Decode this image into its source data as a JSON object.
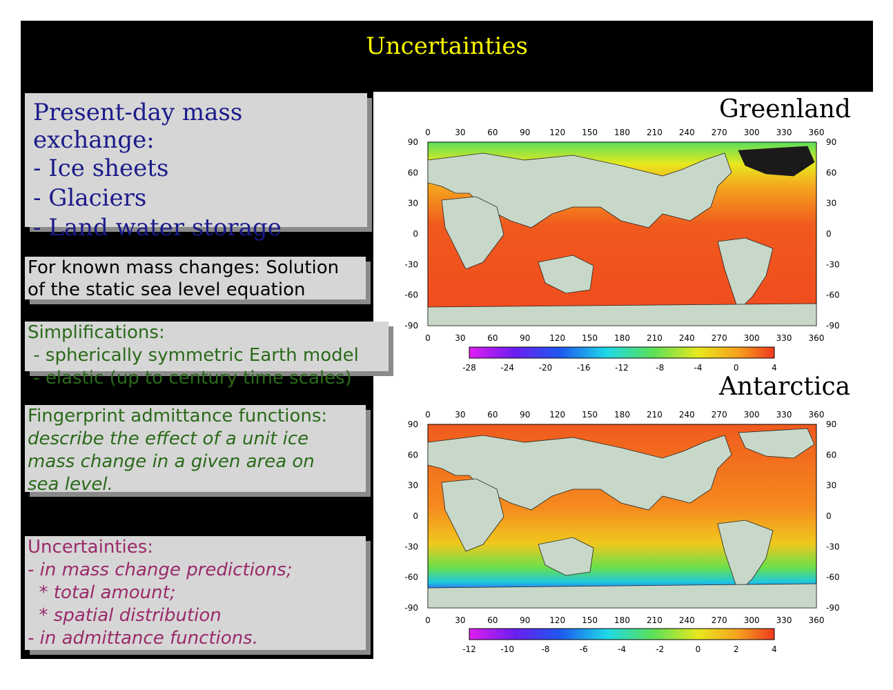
{
  "title": "Uncertainties",
  "box1": {
    "heading": "Present-day mass exchange:",
    "items": [
      "- Ice sheets",
      "- Glaciers",
      "- Land water storage"
    ]
  },
  "box2": {
    "lines": [
      "For known mass changes: Solution",
      "of the static sea level equation"
    ]
  },
  "box3": {
    "lines": [
      "Simplifications:",
      " - spherically symmetric Earth model",
      " - elastic (up to century time scales)"
    ]
  },
  "box4": {
    "heading": "Fingerprint admittance functions:",
    "lines": [
      "describe the effect of a unit ice",
      "mass change in a given area on",
      "sea level."
    ]
  },
  "box5": {
    "heading": "Uncertainties:",
    "lines": [
      "- in mass change predictions;",
      "  * total amount;",
      "  * spatial distribution",
      "- in admittance functions."
    ]
  },
  "map1": {
    "label": "Greenland",
    "lon_ticks": [
      "0",
      "30",
      "60",
      "90",
      "120",
      "150",
      "180",
      "210",
      "240",
      "270",
      "300",
      "330",
      "360"
    ],
    "lat_ticks": [
      "90",
      "60",
      "30",
      "0",
      "-30",
      "-60",
      "-90"
    ],
    "colorbar_ticks": [
      "-28",
      "-24",
      "-20",
      "-16",
      "-12",
      "-8",
      "-4",
      "0",
      "4"
    ]
  },
  "map2": {
    "label": "Antarctica",
    "lon_ticks": [
      "0",
      "30",
      "60",
      "90",
      "120",
      "150",
      "180",
      "210",
      "240",
      "270",
      "300",
      "330",
      "360"
    ],
    "lat_ticks": [
      "90",
      "60",
      "30",
      "0",
      "-30",
      "-60",
      "-90"
    ],
    "colorbar_ticks": [
      "-12",
      "-10",
      "-8",
      "-6",
      "-4",
      "-2",
      "0",
      "2",
      "4"
    ]
  },
  "colors": {
    "ocean_high": "#f05a1e",
    "ocean_mid": "#f5a21e",
    "land": "#c8d8c8",
    "title": "#ffff00"
  }
}
